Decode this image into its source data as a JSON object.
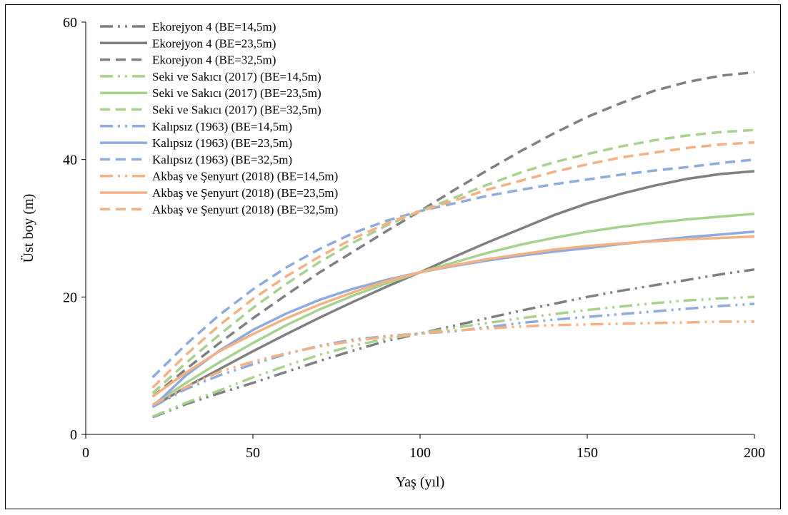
{
  "chart_data": {
    "type": "line",
    "xlabel": "Yaş (yıl)",
    "ylabel": "Üst boy (m)",
    "xlim": [
      0,
      200
    ],
    "ylim": [
      0,
      60
    ],
    "xticks": [
      "0",
      "50",
      "100",
      "150",
      "200"
    ],
    "yticks": [
      "0",
      "20",
      "40",
      "60"
    ],
    "grid": false,
    "legend_position": "top-left",
    "x": [
      20,
      30,
      40,
      50,
      60,
      70,
      80,
      90,
      100,
      110,
      120,
      130,
      140,
      150,
      160,
      170,
      180,
      190,
      200
    ],
    "series": [
      {
        "name": "Ekorejyon 4 (BE=14,5m)",
        "color": "#808080",
        "dash": "dashdotdot",
        "values": [
          2.5,
          4.4,
          6.0,
          7.5,
          9.1,
          10.7,
          12.2,
          13.6,
          14.7,
          15.8,
          16.9,
          18.0,
          19.0,
          20.0,
          20.9,
          21.7,
          22.5,
          23.3,
          24.0
        ]
      },
      {
        "name": "Ekorejyon 4 (BE=23,5m)",
        "color": "#808080",
        "dash": "solid",
        "values": [
          4.0,
          6.9,
          9.5,
          12.1,
          14.6,
          17.0,
          19.3,
          21.5,
          23.6,
          25.8,
          27.9,
          29.9,
          31.9,
          33.6,
          35.0,
          36.2,
          37.2,
          37.9,
          38.3
        ]
      },
      {
        "name": "Ekorejyon 4 (BE=32,5m)",
        "color": "#808080",
        "dash": "dash",
        "values": [
          5.5,
          9.5,
          13.3,
          16.9,
          20.3,
          23.6,
          26.6,
          29.6,
          32.5,
          35.5,
          38.4,
          41.2,
          43.8,
          46.2,
          48.2,
          50.0,
          51.3,
          52.2,
          52.7
        ]
      },
      {
        "name": "Seki ve Sakıcı (2017) (BE=14,5m)",
        "color": "#a9d18e",
        "dash": "dashdotdot",
        "values": [
          2.6,
          4.6,
          6.4,
          8.3,
          10.0,
          11.6,
          12.9,
          13.9,
          14.7,
          15.5,
          16.2,
          16.9,
          17.5,
          18.1,
          18.6,
          19.1,
          19.5,
          19.8,
          20.0
        ]
      },
      {
        "name": "Seki ve Sakıcı (2017) (BE=23,5m)",
        "color": "#a9d18e",
        "dash": "solid",
        "values": [
          4.3,
          7.5,
          10.5,
          13.3,
          15.9,
          18.2,
          20.2,
          22.0,
          23.6,
          25.0,
          26.4,
          27.6,
          28.6,
          29.5,
          30.2,
          30.8,
          31.3,
          31.7,
          32.1
        ]
      },
      {
        "name": "Seki ve Sakıcı (2017) (BE=32,5m)",
        "color": "#a9d18e",
        "dash": "dash",
        "values": [
          6.0,
          10.4,
          14.5,
          18.4,
          21.9,
          25.1,
          27.9,
          30.4,
          32.5,
          34.4,
          36.3,
          38.1,
          39.6,
          40.8,
          41.9,
          42.8,
          43.5,
          44.0,
          44.3
        ]
      },
      {
        "name": "Kalıpsız (1963) (BE=14,5m)",
        "color": "#8faadc",
        "dash": "dashdotdot",
        "values": [
          4.0,
          6.6,
          8.6,
          10.2,
          11.7,
          12.9,
          13.8,
          14.3,
          14.7,
          15.0,
          15.6,
          16.2,
          16.7,
          17.1,
          17.5,
          17.9,
          18.3,
          18.7,
          19.0
        ]
      },
      {
        "name": "Kalıpsız (1963) (BE=23,5m)",
        "color": "#8faadc",
        "dash": "solid",
        "values": [
          4.0,
          8.6,
          12.2,
          15.2,
          17.6,
          19.6,
          21.2,
          22.5,
          23.6,
          24.5,
          25.3,
          26.0,
          26.6,
          27.1,
          27.7,
          28.2,
          28.7,
          29.1,
          29.5
        ]
      },
      {
        "name": "Kalıpsız (1963) (BE=32,5m)",
        "color": "#8faadc",
        "dash": "dash",
        "values": [
          8.3,
          13.1,
          17.4,
          21.1,
          24.3,
          27.0,
          29.3,
          31.1,
          32.5,
          33.6,
          34.7,
          35.6,
          36.4,
          37.1,
          37.8,
          38.4,
          38.9,
          39.5,
          40.0
        ]
      },
      {
        "name": "Akbaş ve Şenyurt (2018) (BE=14,5m)",
        "color": "#f4b183",
        "dash": "dashdotdot",
        "values": [
          4.3,
          6.9,
          9.1,
          10.6,
          11.8,
          12.8,
          13.6,
          14.2,
          14.7,
          15.1,
          15.4,
          15.7,
          15.9,
          16.0,
          16.1,
          16.2,
          16.3,
          16.4,
          16.4
        ]
      },
      {
        "name": "Akbaş ve Şenyurt (2018) (BE=23,5m)",
        "color": "#f4b183",
        "dash": "solid",
        "values": [
          5.5,
          9.0,
          12.1,
          14.6,
          16.9,
          18.9,
          20.7,
          22.3,
          23.6,
          24.6,
          25.5,
          26.2,
          26.9,
          27.4,
          27.8,
          28.1,
          28.4,
          28.6,
          28.8
        ]
      },
      {
        "name": "Akbaş ve Şenyurt (2018) (BE=32,5m)",
        "color": "#f4b183",
        "dash": "dash",
        "values": [
          6.8,
          11.6,
          15.9,
          19.7,
          23.0,
          25.9,
          28.5,
          30.7,
          32.5,
          34.0,
          35.6,
          36.9,
          38.2,
          39.3,
          40.3,
          41.0,
          41.7,
          42.2,
          42.5
        ]
      }
    ]
  }
}
